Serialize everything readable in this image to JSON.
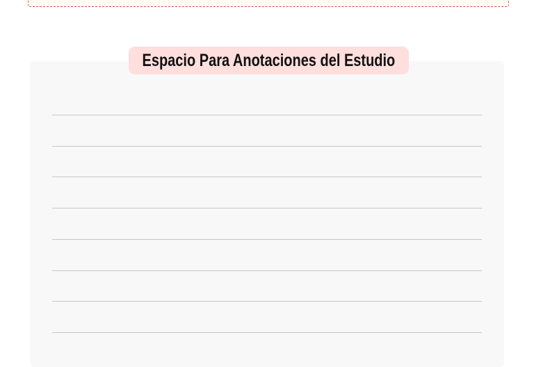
{
  "title": "Espacio Para Anotaciones del Estudio",
  "colors": {
    "badge": "#ffdede",
    "dashed_border": "#e04848",
    "panel": "#f8f8f8",
    "rule": "#c8c8c8"
  },
  "ruled_line_count": 8
}
